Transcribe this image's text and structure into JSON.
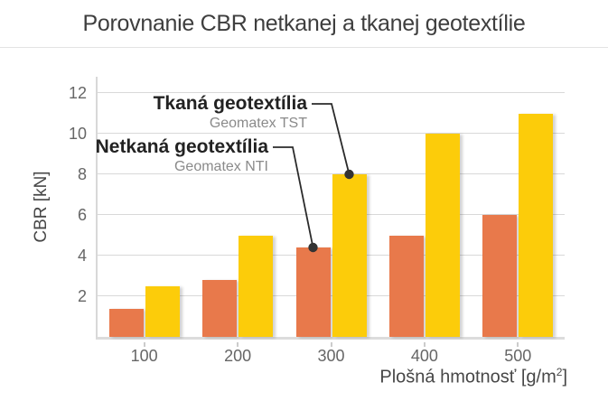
{
  "page": {
    "title": "Porovnanie CBR netkanej a tkanej geotextílie"
  },
  "chart_data": {
    "type": "bar",
    "title": "Porovnanie CBR netkanej a tkanej geotextílie",
    "categories": [
      "100",
      "200",
      "300",
      "400",
      "500"
    ],
    "series": [
      {
        "name": "Netkaná geotextília",
        "product": "Geomatex NTI",
        "color": "#e8794b",
        "values": [
          1.4,
          2.8,
          4.4,
          5.0,
          6.0
        ]
      },
      {
        "name": "Tkaná geotextília",
        "product": "Geomatex TST",
        "color": "#fccc0a",
        "values": [
          2.5,
          5.0,
          8.0,
          10.0,
          11.0
        ]
      }
    ],
    "xlabel": {
      "prefix": "Plošná hmotnosť [g/m",
      "sup": "2",
      "suffix": "]"
    },
    "ylabel": "CBR [kN]",
    "ylim": [
      0,
      12
    ],
    "yticks": [
      2,
      4,
      6,
      8,
      10,
      12
    ],
    "grid": true,
    "legend_position": "annotated-callouts",
    "annotations": [
      {
        "label": "Tkaná geotextília",
        "sublabel": "Geomatex TST",
        "series_index": 1,
        "category_index": 2,
        "value": 8.0
      },
      {
        "label": "Netkaná geotextília",
        "sublabel": "Geomatex NTI",
        "series_index": 0,
        "category_index": 2,
        "value": 4.4
      }
    ],
    "style": {
      "gridline_color": "#d9d9d9",
      "axis_color": "#d8d8d8",
      "tick_text_color": "#666666",
      "axis_title_color": "#474747",
      "callout_dot_color": "#333333",
      "callout_line_color": "#2b2b2b",
      "title_color": "#3e3e3e"
    }
  }
}
